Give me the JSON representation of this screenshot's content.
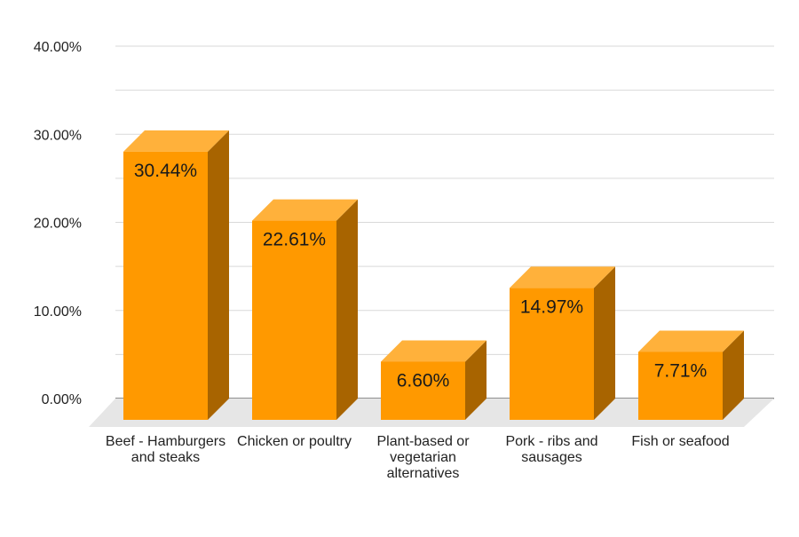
{
  "chart_data": {
    "type": "bar",
    "title": "",
    "xlabel": "",
    "ylabel": "",
    "categories": [
      "Beef - Hamburgers and steaks",
      "Chicken or poultry",
      "Plant-based or vegetarian alternatives",
      "Pork - ribs and sausages",
      "Fish or seafood"
    ],
    "values": [
      30.44,
      22.61,
      6.6,
      14.97,
      7.71
    ],
    "data_labels": [
      "30.44%",
      "22.61%",
      "6.60%",
      "14.97%",
      "7.71%"
    ],
    "y_ticks": [
      0,
      10,
      20,
      30,
      40
    ],
    "y_tick_labels": [
      "0.00%",
      "10.00%",
      "20.00%",
      "30.00%",
      "40.00%"
    ],
    "ylim": [
      0,
      40
    ],
    "grid": true,
    "legend": "none",
    "style": "3d",
    "colors": {
      "bar_front": "#ff9900",
      "bar_top": "#ffb13b",
      "bar_side": "#a86400",
      "floor": "#e6e6e6",
      "grid": "#d9d9d9"
    }
  }
}
